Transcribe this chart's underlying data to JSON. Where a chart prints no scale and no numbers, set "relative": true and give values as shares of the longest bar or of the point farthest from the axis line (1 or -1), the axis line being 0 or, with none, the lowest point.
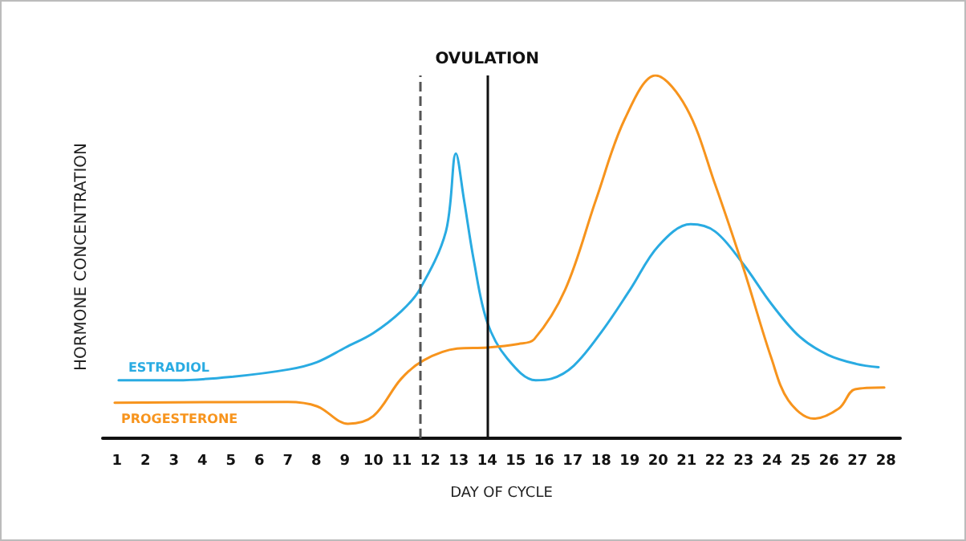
{
  "chart_data": {
    "type": "line",
    "relative": true,
    "xlabel": "DAY OF CYCLE",
    "ylabel": "HORMONE CONCENTRATION",
    "xlim": [
      0.5,
      28.5
    ],
    "xticks": [
      1,
      2,
      3,
      4,
      5,
      6,
      7,
      8,
      9,
      10,
      11,
      12,
      13,
      14,
      15,
      16,
      17,
      18,
      19,
      20,
      21,
      22,
      23,
      24,
      25,
      26,
      27,
      28
    ],
    "grid": false,
    "marker": "none",
    "line_style": "solid",
    "series": [
      {
        "name": "ESTRADIOL",
        "color": "#29abe2",
        "x": [
          1.06,
          3.12,
          5.09,
          7.05,
          8.03,
          9.02,
          10.0,
          10.98,
          11.63,
          12.55,
          12.9,
          13.18,
          13.53,
          14.0,
          14.7,
          15.7,
          16.25,
          17.04,
          18.03,
          19.02,
          20.01,
          21.14,
          22.0,
          22.99,
          23.98,
          24.97,
          25.96,
          26.95,
          27.74
        ],
        "values": [
          0.16,
          0.16,
          0.17,
          0.19,
          0.21,
          0.25,
          0.29,
          0.35,
          0.41,
          0.57,
          0.785,
          0.66,
          0.49,
          0.32,
          0.22,
          0.16,
          0.164,
          0.2,
          0.295,
          0.41,
          0.53,
          0.59,
          0.57,
          0.48,
          0.37,
          0.28,
          0.23,
          0.205,
          0.196
        ]
      },
      {
        "name": "PROGESTERONE",
        "color": "#f7941d",
        "x": [
          0.92,
          7.0,
          8.03,
          9.11,
          10.0,
          10.98,
          11.77,
          12.94,
          14.0,
          15.1,
          15.65,
          16.74,
          17.83,
          18.83,
          19.91,
          21.0,
          22.0,
          22.99,
          23.98,
          24.57,
          25.46,
          26.36,
          26.91,
          27.94
        ],
        "values": [
          0.098,
          0.1,
          0.088,
          0.04,
          0.061,
          0.164,
          0.215,
          0.247,
          0.25,
          0.26,
          0.273,
          0.41,
          0.66,
          0.88,
          1.0,
          0.91,
          0.7,
          0.47,
          0.22,
          0.105,
          0.054,
          0.083,
          0.135,
          0.14
        ]
      }
    ],
    "ref_lines": [
      {
        "axis": "x",
        "value": 11.63,
        "label": null,
        "color": "#555555",
        "line_style": "dashed"
      },
      {
        "axis": "x",
        "value": 14,
        "label": "OVULATION",
        "color": "#111111",
        "line_style": "solid"
      }
    ]
  }
}
